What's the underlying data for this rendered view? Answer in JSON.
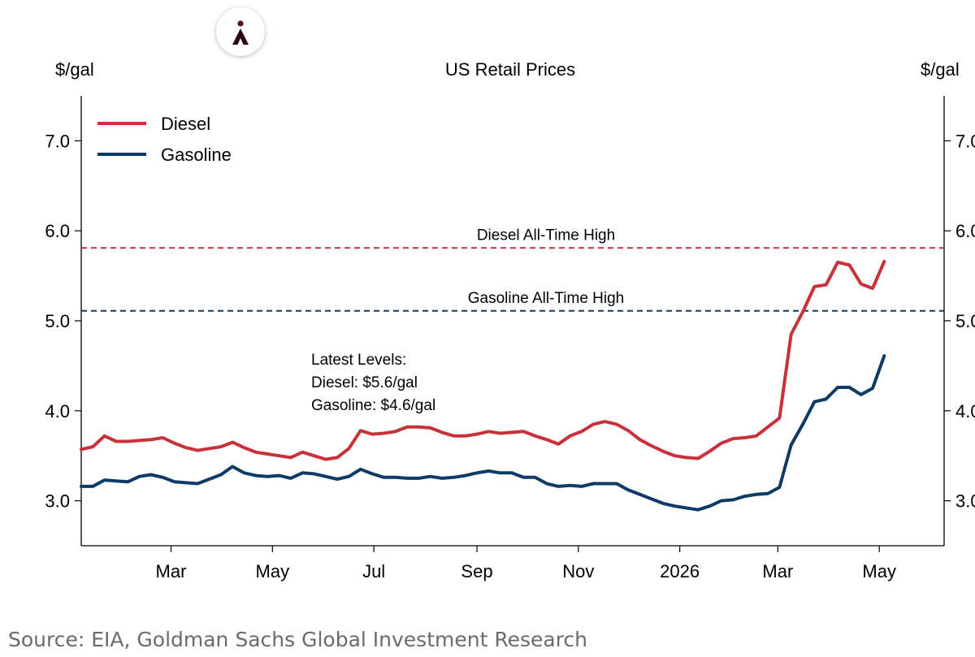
{
  "source": "Source: EIA, Goldman Sachs Global Investment Research",
  "logo_icon": "person-pin-icon",
  "colors": {
    "diesel": "#c8303a",
    "gasoline": "#0d3b66",
    "axis": "#000000"
  },
  "chart_data": {
    "type": "line",
    "title": "US Retail Prices",
    "ylabel_left": "$/gal",
    "ylabel_right": "$/gal",
    "ylim": [
      2.5,
      7.5
    ],
    "yticks": [
      "3.0",
      "4.0",
      "5.0",
      "6.0",
      "7.0"
    ],
    "xlim": [
      "2025-01-06",
      "2026-06-09"
    ],
    "xticks": [
      {
        "label": "Mar",
        "date": "2025-03-01"
      },
      {
        "label": "May",
        "date": "2025-05-01"
      },
      {
        "label": "Jul",
        "date": "2025-07-01"
      },
      {
        "label": "Sep",
        "date": "2025-09-01"
      },
      {
        "label": "Nov",
        "date": "2025-11-01"
      },
      {
        "label": "2026",
        "date": "2026-01-01"
      },
      {
        "label": "Mar",
        "date": "2026-03-01"
      },
      {
        "label": "May",
        "date": "2026-05-01"
      }
    ],
    "grid": false,
    "legend_position": "top-left",
    "reference_lines": [
      {
        "label": "Diesel All-Time High",
        "value": 5.81,
        "series": "Diesel"
      },
      {
        "label": "Gasoline All-Time High",
        "value": 5.11,
        "series": "Gasoline"
      }
    ],
    "annotation": [
      "Latest Levels:",
      "Diesel: $5.6/gal",
      "Gasoline: $4.6/gal"
    ],
    "x": [
      "2025-01-06",
      "2025-01-13",
      "2025-01-20",
      "2025-01-27",
      "2025-02-03",
      "2025-02-10",
      "2025-02-17",
      "2025-02-24",
      "2025-03-03",
      "2025-03-10",
      "2025-03-17",
      "2025-03-24",
      "2025-03-31",
      "2025-04-07",
      "2025-04-14",
      "2025-04-21",
      "2025-04-28",
      "2025-05-05",
      "2025-05-12",
      "2025-05-19",
      "2025-05-26",
      "2025-06-02",
      "2025-06-09",
      "2025-06-16",
      "2025-06-23",
      "2025-06-30",
      "2025-07-07",
      "2025-07-14",
      "2025-07-21",
      "2025-07-28",
      "2025-08-04",
      "2025-08-11",
      "2025-08-18",
      "2025-08-25",
      "2025-09-01",
      "2025-09-08",
      "2025-09-15",
      "2025-09-22",
      "2025-09-29",
      "2025-10-06",
      "2025-10-13",
      "2025-10-20",
      "2025-10-27",
      "2025-11-03",
      "2025-11-10",
      "2025-11-17",
      "2025-11-24",
      "2025-12-01",
      "2025-12-08",
      "2025-12-15",
      "2025-12-22",
      "2025-12-29",
      "2026-01-05",
      "2026-01-12",
      "2026-01-19",
      "2026-01-26",
      "2026-02-02",
      "2026-02-09",
      "2026-02-16",
      "2026-02-23",
      "2026-03-02",
      "2026-03-09",
      "2026-03-16",
      "2026-03-23",
      "2026-03-30",
      "2026-04-06",
      "2026-04-13",
      "2026-04-20",
      "2026-04-27",
      "2026-05-04"
    ],
    "series": [
      {
        "name": "Diesel",
        "values": [
          3.57,
          3.6,
          3.72,
          3.66,
          3.66,
          3.67,
          3.68,
          3.7,
          3.64,
          3.59,
          3.56,
          3.58,
          3.6,
          3.65,
          3.59,
          3.54,
          3.52,
          3.5,
          3.48,
          3.54,
          3.5,
          3.46,
          3.48,
          3.58,
          3.78,
          3.74,
          3.75,
          3.77,
          3.82,
          3.82,
          3.81,
          3.76,
          3.72,
          3.72,
          3.74,
          3.77,
          3.75,
          3.76,
          3.77,
          3.72,
          3.68,
          3.63,
          3.72,
          3.77,
          3.85,
          3.88,
          3.85,
          3.78,
          3.68,
          3.61,
          3.55,
          3.5,
          3.48,
          3.47,
          3.55,
          3.64,
          3.69,
          3.7,
          3.72,
          3.82,
          3.92,
          4.85,
          5.1,
          5.38,
          5.4,
          5.65,
          5.62,
          5.41,
          5.36,
          5.66
        ]
      },
      {
        "name": "Gasoline",
        "values": [
          3.16,
          3.16,
          3.23,
          3.22,
          3.21,
          3.27,
          3.29,
          3.26,
          3.21,
          3.2,
          3.19,
          3.24,
          3.29,
          3.38,
          3.31,
          3.28,
          3.27,
          3.28,
          3.25,
          3.31,
          3.3,
          3.27,
          3.24,
          3.27,
          3.35,
          3.3,
          3.26,
          3.26,
          3.25,
          3.25,
          3.27,
          3.25,
          3.26,
          3.28,
          3.31,
          3.33,
          3.31,
          3.31,
          3.26,
          3.26,
          3.19,
          3.16,
          3.17,
          3.16,
          3.19,
          3.19,
          3.19,
          3.12,
          3.07,
          3.02,
          2.97,
          2.94,
          2.92,
          2.9,
          2.94,
          3.0,
          3.01,
          3.05,
          3.07,
          3.08,
          3.15,
          3.62,
          3.85,
          4.1,
          4.13,
          4.26,
          4.26,
          4.18,
          4.25,
          4.61
        ]
      }
    ]
  }
}
